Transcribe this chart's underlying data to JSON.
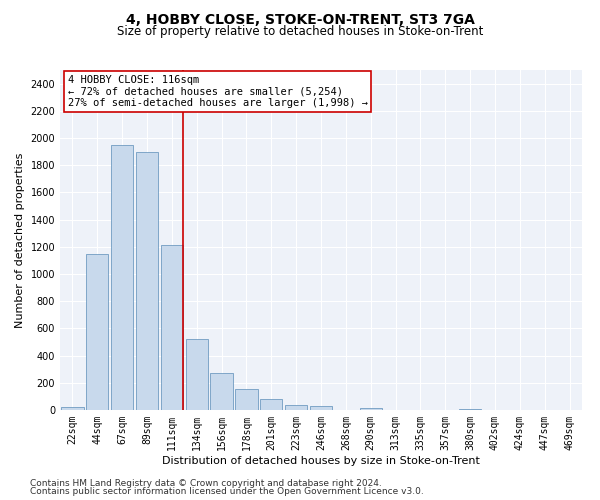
{
  "title1": "4, HOBBY CLOSE, STOKE-ON-TRENT, ST3 7GA",
  "title2": "Size of property relative to detached houses in Stoke-on-Trent",
  "xlabel": "Distribution of detached houses by size in Stoke-on-Trent",
  "ylabel": "Number of detached properties",
  "categories": [
    "22sqm",
    "44sqm",
    "67sqm",
    "89sqm",
    "111sqm",
    "134sqm",
    "156sqm",
    "178sqm",
    "201sqm",
    "223sqm",
    "246sqm",
    "268sqm",
    "290sqm",
    "313sqm",
    "335sqm",
    "357sqm",
    "380sqm",
    "402sqm",
    "424sqm",
    "447sqm",
    "469sqm"
  ],
  "values": [
    20,
    1150,
    1950,
    1900,
    1210,
    520,
    275,
    155,
    80,
    40,
    30,
    0,
    15,
    0,
    0,
    0,
    5,
    0,
    0,
    0,
    0
  ],
  "bar_color": "#c8d9ec",
  "bar_edge_color": "#5b8db8",
  "vline_index": 4,
  "vline_color": "#cc0000",
  "annotation_title": "4 HOBBY CLOSE: 116sqm",
  "annotation_line2": "← 72% of detached houses are smaller (5,254)",
  "annotation_line3": "27% of semi-detached houses are larger (1,998) →",
  "annotation_box_color": "#ffffff",
  "annotation_box_edge": "#cc0000",
  "ylim": [
    0,
    2500
  ],
  "yticks": [
    0,
    200,
    400,
    600,
    800,
    1000,
    1200,
    1400,
    1600,
    1800,
    2000,
    2200,
    2400
  ],
  "footer1": "Contains HM Land Registry data © Crown copyright and database right 2024.",
  "footer2": "Contains public sector information licensed under the Open Government Licence v3.0.",
  "bg_color": "#eef2f9",
  "title1_fontsize": 10,
  "title2_fontsize": 8.5,
  "axis_label_fontsize": 8,
  "tick_fontsize": 7,
  "footer_fontsize": 6.5,
  "annotation_fontsize": 7.5
}
